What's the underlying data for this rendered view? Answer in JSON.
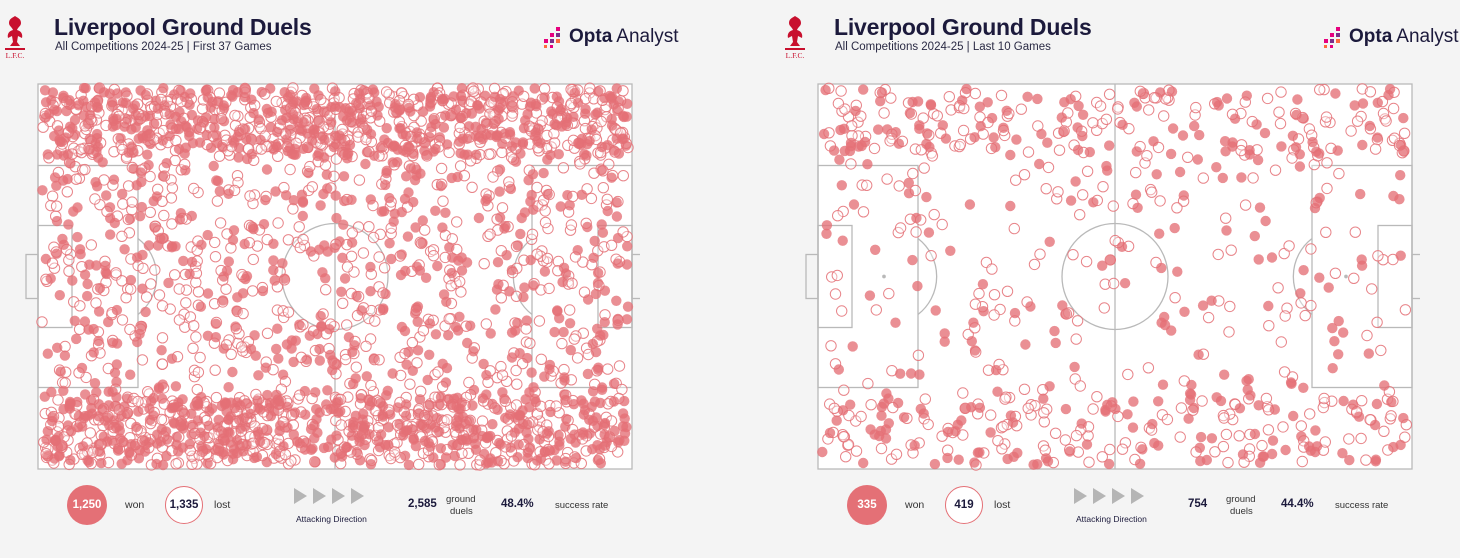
{
  "brand": {
    "opta": "Opta",
    "analyst": "Analyst",
    "crest_text": "L.F.C."
  },
  "colors": {
    "accent": "#e47076",
    "pitch_line": "#b9b9b9",
    "title": "#1c1a3c"
  },
  "panels": [
    {
      "title": "Liverpool Ground Duels",
      "subtitle": "All Competitions 2024-25 | First 37 Games",
      "won_value": "1,250",
      "won_label": "won",
      "lost_value": "1,335",
      "lost_label": "lost",
      "attacking_label": "Attacking Direction",
      "total_value": "2,585",
      "total_label_1": "ground",
      "total_label_2": "duels",
      "rate_value": "48.4%",
      "rate_label": "success rate"
    },
    {
      "title": "Liverpool Ground Duels",
      "subtitle": "All Competitions 2024-25 | Last 10 Games",
      "won_value": "335",
      "won_label": "won",
      "lost_value": "419",
      "lost_label": "lost",
      "attacking_label": "Attacking Direction",
      "total_value": "754",
      "total_label_1": "ground",
      "total_label_2": "duels",
      "rate_value": "44.4%",
      "rate_label": "success rate"
    }
  ],
  "chart_data": [
    {
      "type": "scatter",
      "title": "Liverpool Ground Duels",
      "subtitle": "All Competitions 2024-25 | First 37 Games",
      "categories": [
        "won",
        "lost"
      ],
      "counts": {
        "won": 1250,
        "lost": 1335,
        "total": 2585
      },
      "success_rate": 48.4,
      "series": [
        {
          "name": "won",
          "style": "filled"
        },
        {
          "name": "lost",
          "style": "outline"
        }
      ]
    },
    {
      "type": "scatter",
      "title": "Liverpool Ground Duels",
      "subtitle": "All Competitions 2024-25 | Last 10 Games",
      "categories": [
        "won",
        "lost"
      ],
      "counts": {
        "won": 335,
        "lost": 419,
        "total": 754
      },
      "success_rate": 44.4,
      "series": [
        {
          "name": "won",
          "style": "filled"
        },
        {
          "name": "lost",
          "style": "outline"
        }
      ]
    }
  ]
}
